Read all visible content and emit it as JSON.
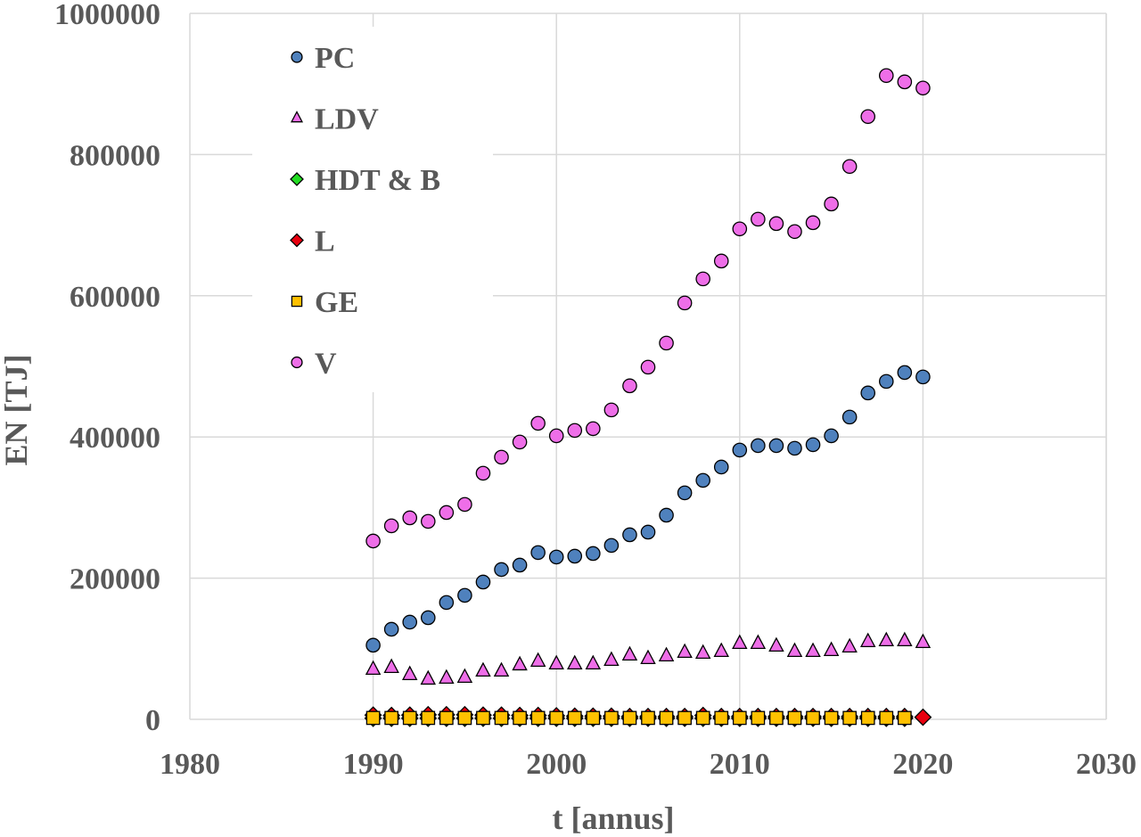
{
  "chart_data": {
    "type": "scatter",
    "xlabel": "t [annus]",
    "ylabel": "EN [TJ]",
    "xlim": [
      1980,
      2030
    ],
    "ylim": [
      0,
      1000000
    ],
    "xticks": [
      1980,
      1990,
      2000,
      2010,
      2020,
      2030
    ],
    "yticks": [
      0,
      200000,
      400000,
      600000,
      800000,
      1000000
    ],
    "grid": true,
    "legend_position": "top-left",
    "x": [
      1990,
      1991,
      1992,
      1993,
      1994,
      1995,
      1996,
      1997,
      1998,
      1999,
      2000,
      2001,
      2002,
      2003,
      2004,
      2005,
      2006,
      2007,
      2008,
      2009,
      2010,
      2011,
      2012,
      2013,
      2014,
      2015,
      2016,
      2017,
      2018,
      2019,
      2020
    ],
    "series": [
      {
        "name": "PC",
        "marker": "circle",
        "color": "#4f81bd",
        "values": [
          105000,
          127600,
          137700,
          144000,
          165500,
          175600,
          194500,
          212200,
          218500,
          236200,
          229900,
          231100,
          234900,
          246300,
          261400,
          265200,
          289200,
          320800,
          338500,
          357400,
          381400,
          387700,
          387700,
          384000,
          389000,
          401600,
          428200,
          462300,
          478700,
          491300,
          485000
        ]
      },
      {
        "name": "LDV",
        "marker": "triangle",
        "color": "#ee6ee8",
        "values": [
          70700,
          73300,
          63200,
          56800,
          58100,
          59400,
          68200,
          68200,
          77000,
          82100,
          78300,
          78300,
          78300,
          83400,
          90900,
          85900,
          89700,
          94700,
          93500,
          96000,
          107400,
          107400,
          103600,
          96000,
          96000,
          97300,
          102300,
          109900,
          111100,
          111100,
          108600
        ]
      },
      {
        "name": "HDT & B",
        "marker": "diamond",
        "color": "#22dd22",
        "values": [
          1500,
          1500,
          1500,
          1500,
          1500,
          1500,
          1500,
          1500,
          1500,
          1500,
          1500,
          1500,
          1500,
          1500,
          1500,
          1500,
          1500,
          1500,
          1500,
          1500,
          1500,
          1500,
          1500,
          1500,
          1500,
          1500,
          1500,
          1500,
          1500,
          1500,
          null
        ]
      },
      {
        "name": "L",
        "marker": "diamond",
        "color": "#e8000f",
        "values": [
          6000,
          5500,
          6000,
          6500,
          6500,
          6500,
          6000,
          6000,
          5500,
          5500,
          5000,
          4500,
          4500,
          4500,
          4000,
          4000,
          4000,
          4000,
          5500,
          4000,
          4000,
          4000,
          4000,
          4000,
          4000,
          4000,
          4000,
          4000,
          4000,
          4000,
          3000
        ]
      },
      {
        "name": "GE",
        "marker": "square",
        "color": "#ffc000",
        "values": [
          2000,
          2000,
          2000,
          2000,
          2000,
          2000,
          2000,
          2000,
          2000,
          2000,
          2000,
          2000,
          2000,
          2000,
          2000,
          2000,
          2000,
          2000,
          2000,
          2000,
          2000,
          2000,
          2000,
          2000,
          2000,
          2000,
          2000,
          2000,
          2000,
          2000,
          null
        ]
      },
      {
        "name": "V",
        "marker": "circle",
        "color": "#ee6ee8",
        "values": [
          252600,
          274100,
          285400,
          280400,
          293000,
          304400,
          348600,
          371300,
          392800,
          419300,
          401600,
          409200,
          411700,
          438300,
          472400,
          498900,
          533000,
          589800,
          623900,
          649200,
          694700,
          708500,
          702200,
          690900,
          703500,
          730000,
          783100,
          853800,
          911900,
          903000,
          894200
        ]
      }
    ]
  }
}
